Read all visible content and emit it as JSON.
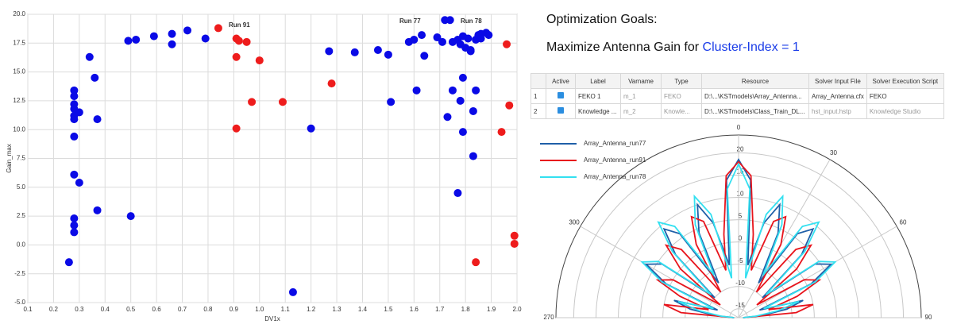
{
  "chart_data": [
    {
      "type": "scatter",
      "xlabel": "DV1x",
      "ylabel": "Gain_max",
      "xlim": [
        0.1,
        2.0
      ],
      "ylim": [
        -5,
        20
      ],
      "xticks": [
        0.1,
        0.2,
        0.3,
        0.4,
        0.5,
        0.6,
        0.7,
        0.8,
        0.9,
        {
          "value": 1,
          "label": "1.0"
        },
        1.1,
        1.2,
        1.3,
        1.4,
        1.5,
        1.6,
        1.7,
        1.8,
        1.9,
        {
          "value": 2,
          "label": "2.0"
        }
      ],
      "yticks": [
        {
          "value": -5,
          "label": "-5.0"
        },
        -2.5,
        {
          "value": 0,
          "label": "0.0"
        },
        2.5,
        {
          "value": 5,
          "label": "5.0"
        },
        7.5,
        {
          "value": 10,
          "label": "10.0"
        },
        12.5,
        {
          "value": 15,
          "label": "15.0"
        },
        17.5,
        {
          "value": 20,
          "label": "20.0"
        }
      ],
      "grid": true,
      "series": [
        {
          "color": "#0a0ae6",
          "x": [
            0.28,
            0.28,
            0.28,
            0.28,
            0.3,
            0.28,
            0.28,
            0.28,
            0.28,
            0.28,
            0.28,
            0.28,
            0.36,
            0.37,
            0.3,
            0.26,
            0.34,
            0.37,
            0.49,
            0.52,
            0.5,
            0.59,
            0.66,
            0.66,
            0.72,
            0.79,
            1.2,
            1.13,
            1.27,
            1.37,
            1.46,
            1.5,
            1.51,
            1.58,
            1.6,
            1.61,
            1.63,
            1.64,
            1.69,
            1.71,
            1.72,
            1.74,
            1.73,
            1.75,
            1.75,
            1.77,
            1.77,
            1.78,
            1.78,
            1.79,
            1.79,
            1.79,
            1.8,
            1.81,
            1.82,
            1.82,
            1.83,
            1.83,
            1.84,
            1.84,
            1.85,
            1.86,
            1.88,
            1.89,
            1.86
          ],
          "values": [
            13.4,
            12.9,
            12.2,
            11.8,
            11.5,
            11.2,
            10.9,
            9.4,
            6.1,
            2.3,
            1.7,
            1.1,
            14.5,
            10.9,
            5.4,
            -1.5,
            16.3,
            3.0,
            17.7,
            17.8,
            2.5,
            18.1,
            18.3,
            17.4,
            18.6,
            17.9,
            10.1,
            -4.1,
            16.8,
            16.7,
            16.9,
            16.5,
            12.4,
            17.6,
            17.8,
            13.4,
            18.2,
            16.4,
            18.0,
            17.6,
            19.5,
            19.5,
            11.1,
            13.4,
            17.6,
            17.8,
            4.5,
            17.4,
            12.5,
            14.5,
            9.8,
            18.1,
            17.1,
            17.9,
            16.8,
            16.9,
            11.6,
            7.7,
            13.4,
            17.8,
            18.2,
            18.3,
            18.4,
            18.2,
            17.9
          ]
        },
        {
          "color": "#ee1c1c",
          "x": [
            0.84,
            0.91,
            0.92,
            0.91,
            0.95,
            0.91,
            0.97,
            1.0,
            1.09,
            1.28,
            1.84,
            1.94,
            1.96,
            1.97,
            1.99,
            1.99
          ],
          "values": [
            18.8,
            17.9,
            17.7,
            16.3,
            17.6,
            10.1,
            12.4,
            16.0,
            12.4,
            14.0,
            -1.5,
            9.8,
            17.4,
            12.1,
            0.8,
            0.1
          ]
        }
      ],
      "annotations": [
        {
          "text": "Run 91",
          "color": "#ee1c1c"
        },
        {
          "text": "Run 77",
          "color": "#1a2ad0"
        },
        {
          "text": "Run 78",
          "color": "#1a2ad0"
        }
      ]
    },
    {
      "type": "polar",
      "rlim": [
        -17,
        24
      ],
      "rticks": [
        -15,
        -10,
        -5,
        0,
        5,
        10,
        15,
        20
      ],
      "thetaticks": [
        {
          "value": -90,
          "label": "270"
        },
        {
          "value": -60,
          "label": "300"
        },
        0,
        30,
        60,
        90
      ],
      "theta": [
        -90,
        -85,
        -80,
        -75,
        -70,
        -65,
        -60,
        -55,
        -50,
        -45,
        -40,
        -35,
        -30,
        -25,
        -20,
        -15,
        -10,
        -5,
        0,
        5,
        10,
        15,
        20,
        25,
        30,
        35,
        40,
        45,
        50,
        55,
        60,
        65,
        70,
        75,
        80,
        85,
        90
      ],
      "series": [
        {
          "name": "Array_Antenna_run77",
          "color": "#1f5fa8",
          "values": [
            -16,
            -12,
            -6,
            -2,
            -12,
            1,
            7,
            4,
            -10,
            3,
            9,
            6,
            -8,
            4,
            10,
            5,
            -5,
            14,
            18.5,
            14,
            -5,
            5,
            10,
            4,
            -8,
            6,
            9,
            3,
            -10,
            4,
            7,
            1,
            -12,
            -2,
            -6,
            -12,
            -16
          ]
        },
        {
          "name": "Array_Antenna_run91",
          "color": "#e8141c",
          "values": [
            -16,
            -4,
            0,
            -10,
            -3,
            3,
            0,
            -12,
            0,
            6,
            3,
            -10,
            2,
            8,
            6,
            -6,
            2,
            15,
            18,
            15,
            2,
            -6,
            6,
            8,
            2,
            -10,
            3,
            6,
            0,
            -12,
            0,
            3,
            -3,
            -10,
            0,
            -4,
            -16
          ]
        },
        {
          "name": "Array_Antenna_run78",
          "color": "#33e0f0",
          "values": [
            -16,
            -13,
            -8,
            -3,
            -11,
            2,
            8,
            5,
            -9,
            4,
            11,
            8,
            -6,
            6,
            12,
            7,
            -8,
            12,
            17.5,
            12,
            -8,
            7,
            12,
            6,
            -6,
            8,
            11,
            4,
            -9,
            5,
            8,
            2,
            -11,
            -3,
            -8,
            -13,
            -16
          ]
        }
      ]
    }
  ],
  "goals": {
    "title": "Optimization Goals:",
    "text": "Maximize Antenna Gain for",
    "highlight": "Cluster-Index = 1"
  },
  "table": {
    "headers": [
      "Active",
      "Label",
      "Varname",
      "Type",
      "Resource",
      "Solver Input File",
      "Solver Execution Script"
    ],
    "rows": [
      [
        "1",
        "FEKO 1",
        "m_1",
        "FEKO",
        "D:\\...\\KSTmodels\\Array_Antenna...",
        "Array_Antenna.cfx",
        "FEKO"
      ],
      [
        "2",
        "Knowledge ...",
        "m_2",
        "Knowle...",
        "D:\\...\\KSTmodels\\Class_Train_DL...",
        "hst_input.hstp",
        "Knowledge Studio"
      ]
    ]
  }
}
